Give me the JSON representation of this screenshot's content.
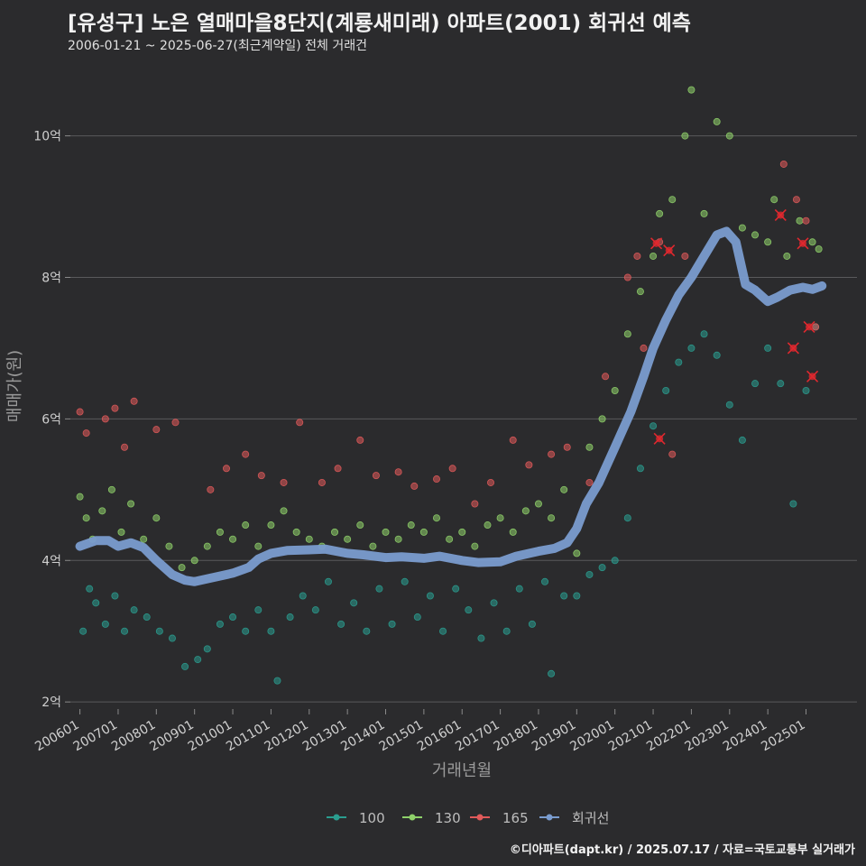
{
  "header": {
    "title": "[유성구] 노은 열매마을8단지(계룡새미래) 아파트(2001) 회귀선 예측",
    "subtitle": "2006-01-21 ~ 2025-06-27(최근계약일) 전체 거래건"
  },
  "footer": {
    "credit": "©디아파트(dapt.kr) / 2025.07.17 / 자료=국토교통부 실거래가"
  },
  "colors": {
    "background": "#2b2b2d",
    "s100": "#2a9d8f",
    "s130": "#8fd16a",
    "s165": "#e05a5a",
    "regression": "#7a9ccf",
    "cancel_mark": "#e0282e"
  },
  "chart_data": {
    "type": "scatter",
    "title": "[유성구] 노은 열매마을8단지(계룡새미래) 아파트(2001) 회귀선 예측",
    "subtitle": "2006-01-21 ~ 2025-06-27(최근계약일) 전체 거래건",
    "xlabel": "거래년월",
    "ylabel": "매매가(원)",
    "x_range": [
      "2005-10",
      "2026-05"
    ],
    "ylim": [
      1.9,
      10.9
    ],
    "y_ticks": [
      2,
      4,
      6,
      8,
      10
    ],
    "y_tick_labels": [
      "2억",
      "4억",
      "6억",
      "8억",
      "10억"
    ],
    "x_ticks": [
      "2006-01",
      "2007-01",
      "2008-01",
      "2009-01",
      "2010-01",
      "2011-01",
      "2012-01",
      "2013-01",
      "2014-01",
      "2015-01",
      "2016-01",
      "2017-01",
      "2018-01",
      "2019-01",
      "2020-01",
      "2021-01",
      "2022-01",
      "2023-01",
      "2024-01",
      "2025-01"
    ],
    "x_tick_labels": [
      "200601",
      "200701",
      "200801",
      "200901",
      "201001",
      "201101",
      "201201",
      "201301",
      "201401",
      "201501",
      "201601",
      "201701",
      "201801",
      "201901",
      "202001",
      "202101",
      "202201",
      "202301",
      "202401",
      "202501"
    ],
    "grid": true,
    "legend_position": "bottom",
    "legend": [
      "100",
      "130",
      "165",
      "회귀선"
    ],
    "series": [
      {
        "name": "100",
        "type": "scatter",
        "points": [
          [
            "2006-02",
            3.0
          ],
          [
            "2006-04",
            3.6
          ],
          [
            "2006-06",
            3.4
          ],
          [
            "2006-09",
            3.1
          ],
          [
            "2006-12",
            3.5
          ],
          [
            "2007-03",
            3.0
          ],
          [
            "2007-06",
            3.3
          ],
          [
            "2007-10",
            3.2
          ],
          [
            "2008-02",
            3.0
          ],
          [
            "2008-06",
            2.9
          ],
          [
            "2008-10",
            2.5
          ],
          [
            "2009-02",
            2.6
          ],
          [
            "2009-05",
            2.75
          ],
          [
            "2009-09",
            3.1
          ],
          [
            "2010-01",
            3.2
          ],
          [
            "2010-05",
            3.0
          ],
          [
            "2010-09",
            3.3
          ],
          [
            "2011-01",
            3.0
          ],
          [
            "2011-03",
            2.3
          ],
          [
            "2011-07",
            3.2
          ],
          [
            "2011-11",
            3.5
          ],
          [
            "2012-03",
            3.3
          ],
          [
            "2012-07",
            3.7
          ],
          [
            "2012-11",
            3.1
          ],
          [
            "2013-03",
            3.4
          ],
          [
            "2013-07",
            3.0
          ],
          [
            "2013-11",
            3.6
          ],
          [
            "2014-03",
            3.1
          ],
          [
            "2014-07",
            3.7
          ],
          [
            "2014-11",
            3.2
          ],
          [
            "2015-03",
            3.5
          ],
          [
            "2015-07",
            3.0
          ],
          [
            "2015-11",
            3.6
          ],
          [
            "2016-03",
            3.3
          ],
          [
            "2016-07",
            2.9
          ],
          [
            "2016-11",
            3.4
          ],
          [
            "2017-03",
            3.0
          ],
          [
            "2017-07",
            3.6
          ],
          [
            "2017-11",
            3.1
          ],
          [
            "2018-03",
            3.7
          ],
          [
            "2018-05",
            2.4
          ],
          [
            "2018-09",
            3.5
          ],
          [
            "2019-01",
            3.5
          ],
          [
            "2019-05",
            3.8
          ],
          [
            "2019-09",
            3.9
          ],
          [
            "2020-01",
            4.0
          ],
          [
            "2020-05",
            4.6
          ],
          [
            "2020-09",
            5.3
          ],
          [
            "2021-01",
            5.9
          ],
          [
            "2021-05",
            6.4
          ],
          [
            "2021-09",
            6.8
          ],
          [
            "2022-01",
            7.0
          ],
          [
            "2022-05",
            7.2
          ],
          [
            "2022-09",
            6.9
          ],
          [
            "2023-01",
            6.2
          ],
          [
            "2023-05",
            5.7
          ],
          [
            "2023-09",
            6.5
          ],
          [
            "2024-01",
            7.0
          ],
          [
            "2024-05",
            6.5
          ],
          [
            "2024-09",
            4.8
          ],
          [
            "2025-01",
            6.4
          ],
          [
            "2025-04",
            7.3
          ]
        ]
      },
      {
        "name": "130",
        "type": "scatter",
        "points": [
          [
            "2006-01",
            4.9
          ],
          [
            "2006-03",
            4.6
          ],
          [
            "2006-05",
            4.3
          ],
          [
            "2006-08",
            4.7
          ],
          [
            "2006-11",
            5.0
          ],
          [
            "2007-02",
            4.4
          ],
          [
            "2007-05",
            4.8
          ],
          [
            "2007-09",
            4.3
          ],
          [
            "2008-01",
            4.6
          ],
          [
            "2008-05",
            4.2
          ],
          [
            "2008-09",
            3.9
          ],
          [
            "2009-01",
            4.0
          ],
          [
            "2009-05",
            4.2
          ],
          [
            "2009-09",
            4.4
          ],
          [
            "2010-01",
            4.3
          ],
          [
            "2010-05",
            4.5
          ],
          [
            "2010-09",
            4.2
          ],
          [
            "2011-01",
            4.5
          ],
          [
            "2011-05",
            4.7
          ],
          [
            "2011-09",
            4.4
          ],
          [
            "2012-01",
            4.3
          ],
          [
            "2012-05",
            4.2
          ],
          [
            "2012-09",
            4.4
          ],
          [
            "2013-01",
            4.3
          ],
          [
            "2013-05",
            4.5
          ],
          [
            "2013-09",
            4.2
          ],
          [
            "2014-01",
            4.4
          ],
          [
            "2014-05",
            4.3
          ],
          [
            "2014-09",
            4.5
          ],
          [
            "2015-01",
            4.4
          ],
          [
            "2015-05",
            4.6
          ],
          [
            "2015-09",
            4.3
          ],
          [
            "2016-01",
            4.4
          ],
          [
            "2016-05",
            4.2
          ],
          [
            "2016-09",
            4.5
          ],
          [
            "2017-01",
            4.6
          ],
          [
            "2017-05",
            4.4
          ],
          [
            "2017-09",
            4.7
          ],
          [
            "2018-01",
            4.8
          ],
          [
            "2018-05",
            4.6
          ],
          [
            "2018-09",
            5.0
          ],
          [
            "2019-01",
            4.1
          ],
          [
            "2019-05",
            5.6
          ],
          [
            "2019-09",
            6.0
          ],
          [
            "2020-01",
            6.4
          ],
          [
            "2020-05",
            7.2
          ],
          [
            "2020-09",
            7.8
          ],
          [
            "2021-01",
            8.3
          ],
          [
            "2021-03",
            8.9
          ],
          [
            "2021-07",
            9.1
          ],
          [
            "2021-11",
            10.0
          ],
          [
            "2022-01",
            10.65
          ],
          [
            "2022-05",
            8.9
          ],
          [
            "2022-09",
            10.2
          ],
          [
            "2023-01",
            10.0
          ],
          [
            "2023-05",
            8.7
          ],
          [
            "2023-09",
            8.6
          ],
          [
            "2024-01",
            8.5
          ],
          [
            "2024-03",
            9.1
          ],
          [
            "2024-07",
            8.3
          ],
          [
            "2024-11",
            8.8
          ],
          [
            "2025-03",
            8.5
          ],
          [
            "2025-05",
            8.4
          ]
        ]
      },
      {
        "name": "165",
        "type": "scatter",
        "points": [
          [
            "2006-01",
            6.1
          ],
          [
            "2006-03",
            5.8
          ],
          [
            "2006-09",
            6.0
          ],
          [
            "2006-12",
            6.15
          ],
          [
            "2007-03",
            5.6
          ],
          [
            "2007-06",
            6.25
          ],
          [
            "2008-01",
            5.85
          ],
          [
            "2008-07",
            5.95
          ],
          [
            "2009-06",
            5.0
          ],
          [
            "2009-11",
            5.3
          ],
          [
            "2010-05",
            5.5
          ],
          [
            "2010-10",
            5.2
          ],
          [
            "2011-05",
            5.1
          ],
          [
            "2011-10",
            5.95
          ],
          [
            "2012-05",
            5.1
          ],
          [
            "2012-10",
            5.3
          ],
          [
            "2013-05",
            5.7
          ],
          [
            "2013-10",
            5.2
          ],
          [
            "2014-05",
            5.25
          ],
          [
            "2014-10",
            5.05
          ],
          [
            "2015-05",
            5.15
          ],
          [
            "2015-10",
            5.3
          ],
          [
            "2016-05",
            4.8
          ],
          [
            "2016-10",
            5.1
          ],
          [
            "2017-05",
            5.7
          ],
          [
            "2017-10",
            5.35
          ],
          [
            "2018-05",
            5.5
          ],
          [
            "2018-10",
            5.6
          ],
          [
            "2019-05",
            5.1
          ],
          [
            "2019-10",
            6.6
          ],
          [
            "2020-05",
            8.0
          ],
          [
            "2020-08",
            8.3
          ],
          [
            "2020-10",
            7.0
          ],
          [
            "2021-03",
            8.5
          ],
          [
            "2021-07",
            5.5
          ],
          [
            "2021-11",
            8.3
          ],
          [
            "2024-06",
            9.6
          ],
          [
            "2024-10",
            9.1
          ],
          [
            "2025-01",
            8.8
          ],
          [
            "2025-04",
            7.3
          ]
        ]
      },
      {
        "name": "회귀선",
        "type": "line",
        "points": [
          [
            "2006-01",
            4.2
          ],
          [
            "2006-06",
            4.28
          ],
          [
            "2006-10",
            4.28
          ],
          [
            "2007-01",
            4.2
          ],
          [
            "2007-05",
            4.25
          ],
          [
            "2007-09",
            4.18
          ],
          [
            "2008-01",
            4.0
          ],
          [
            "2008-06",
            3.8
          ],
          [
            "2008-10",
            3.72
          ],
          [
            "2009-01",
            3.7
          ],
          [
            "2009-06",
            3.75
          ],
          [
            "2010-01",
            3.82
          ],
          [
            "2010-06",
            3.9
          ],
          [
            "2010-09",
            4.02
          ],
          [
            "2011-01",
            4.1
          ],
          [
            "2011-06",
            4.14
          ],
          [
            "2012-01",
            4.15
          ],
          [
            "2012-06",
            4.16
          ],
          [
            "2013-01",
            4.1
          ],
          [
            "2013-06",
            4.08
          ],
          [
            "2014-01",
            4.04
          ],
          [
            "2014-06",
            4.05
          ],
          [
            "2015-01",
            4.03
          ],
          [
            "2015-06",
            4.06
          ],
          [
            "2016-01",
            4.0
          ],
          [
            "2016-06",
            3.97
          ],
          [
            "2017-01",
            3.98
          ],
          [
            "2017-06",
            4.06
          ],
          [
            "2018-01",
            4.13
          ],
          [
            "2018-06",
            4.17
          ],
          [
            "2018-10",
            4.25
          ],
          [
            "2019-01",
            4.45
          ],
          [
            "2019-04",
            4.8
          ],
          [
            "2019-08",
            5.1
          ],
          [
            "2020-01",
            5.6
          ],
          [
            "2020-06",
            6.1
          ],
          [
            "2020-10",
            6.6
          ],
          [
            "2021-01",
            7.0
          ],
          [
            "2021-05",
            7.4
          ],
          [
            "2021-09",
            7.75
          ],
          [
            "2022-01",
            8.0
          ],
          [
            "2022-05",
            8.3
          ],
          [
            "2022-09",
            8.6
          ],
          [
            "2022-12",
            8.65
          ],
          [
            "2023-03",
            8.5
          ],
          [
            "2023-06",
            7.9
          ],
          [
            "2023-09",
            7.82
          ],
          [
            "2024-01",
            7.66
          ],
          [
            "2024-04",
            7.72
          ],
          [
            "2024-08",
            7.82
          ],
          [
            "2024-12",
            7.86
          ],
          [
            "2025-03",
            7.83
          ],
          [
            "2025-06",
            7.88
          ]
        ]
      }
    ],
    "cancelled_marks": [
      [
        "2021-02",
        8.48
      ],
      [
        "2021-06",
        8.38
      ],
      [
        "2021-03",
        5.72
      ],
      [
        "2024-05",
        8.88
      ],
      [
        "2024-09",
        7.0
      ],
      [
        "2024-12",
        8.48
      ],
      [
        "2025-02",
        7.3
      ],
      [
        "2025-03",
        6.6
      ]
    ]
  }
}
